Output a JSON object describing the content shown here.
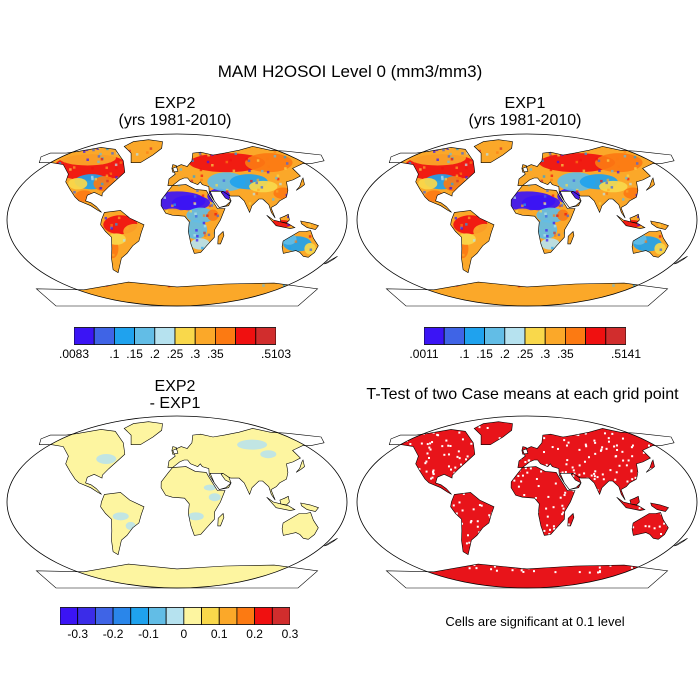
{
  "main_title": "MAM H2OSOI Level 0 (mm3/mm3)",
  "panels": [
    {
      "id": "exp2",
      "title_line1": "EXP2",
      "title_line2": "(yrs 1981-2010)"
    },
    {
      "id": "exp1",
      "title_line1": "EXP1",
      "title_line2": "(yrs 1981-2010)"
    },
    {
      "id": "diff",
      "title_line1": "EXP2",
      "title_line2": "- EXP1"
    },
    {
      "id": "ttest",
      "title_line1": "T-Test of two Case means at each grid point",
      "title_line2": ""
    }
  ],
  "colorbars": {
    "exp2": {
      "colors": [
        "#3b14f5",
        "#3f64e6",
        "#1fa2ee",
        "#62bde6",
        "#b6e2ef",
        "#f9d84b",
        "#fba829",
        "#fc7a12",
        "#f01010",
        "#d12d2d"
      ],
      "labels": [
        ".0083",
        ".1",
        ".15",
        ".2",
        ".25",
        ".3",
        ".35",
        ".5103"
      ],
      "label_edges": [
        0,
        2,
        3,
        4,
        5,
        6,
        7,
        10
      ]
    },
    "exp1": {
      "colors": [
        "#3b14f5",
        "#3f64e6",
        "#1fa2ee",
        "#62bde6",
        "#b6e2ef",
        "#f9d84b",
        "#fba829",
        "#fc7a12",
        "#f01010",
        "#d12d2d"
      ],
      "labels": [
        ".0011",
        ".1",
        ".15",
        ".2",
        ".25",
        ".3",
        ".35",
        ".5141"
      ],
      "label_edges": [
        0,
        2,
        3,
        4,
        5,
        6,
        7,
        10
      ]
    },
    "diff": {
      "colors": [
        "#3b14f5",
        "#3b2ce8",
        "#3f64e6",
        "#2a86ea",
        "#1fa2ee",
        "#62bde6",
        "#b6e2ef",
        "#fdf5a0",
        "#f9d84b",
        "#fba829",
        "#fc7a12",
        "#f01010",
        "#d12d2d"
      ],
      "labels": [
        "-0.3",
        "-0.2",
        "-0.1",
        "0",
        "0.1",
        "0.2",
        "0.3"
      ],
      "label_edges": [
        1,
        3,
        5,
        7,
        9,
        11,
        13
      ]
    }
  },
  "significance_note": "Cells are significant at 0.1 level",
  "map_colors": {
    "ocean": "#ffffff",
    "coast": "#000000",
    "diff_land": "#fdf5a0",
    "diff_minor": "#b6e2ef",
    "ttest_sig": "#e8141a"
  }
}
